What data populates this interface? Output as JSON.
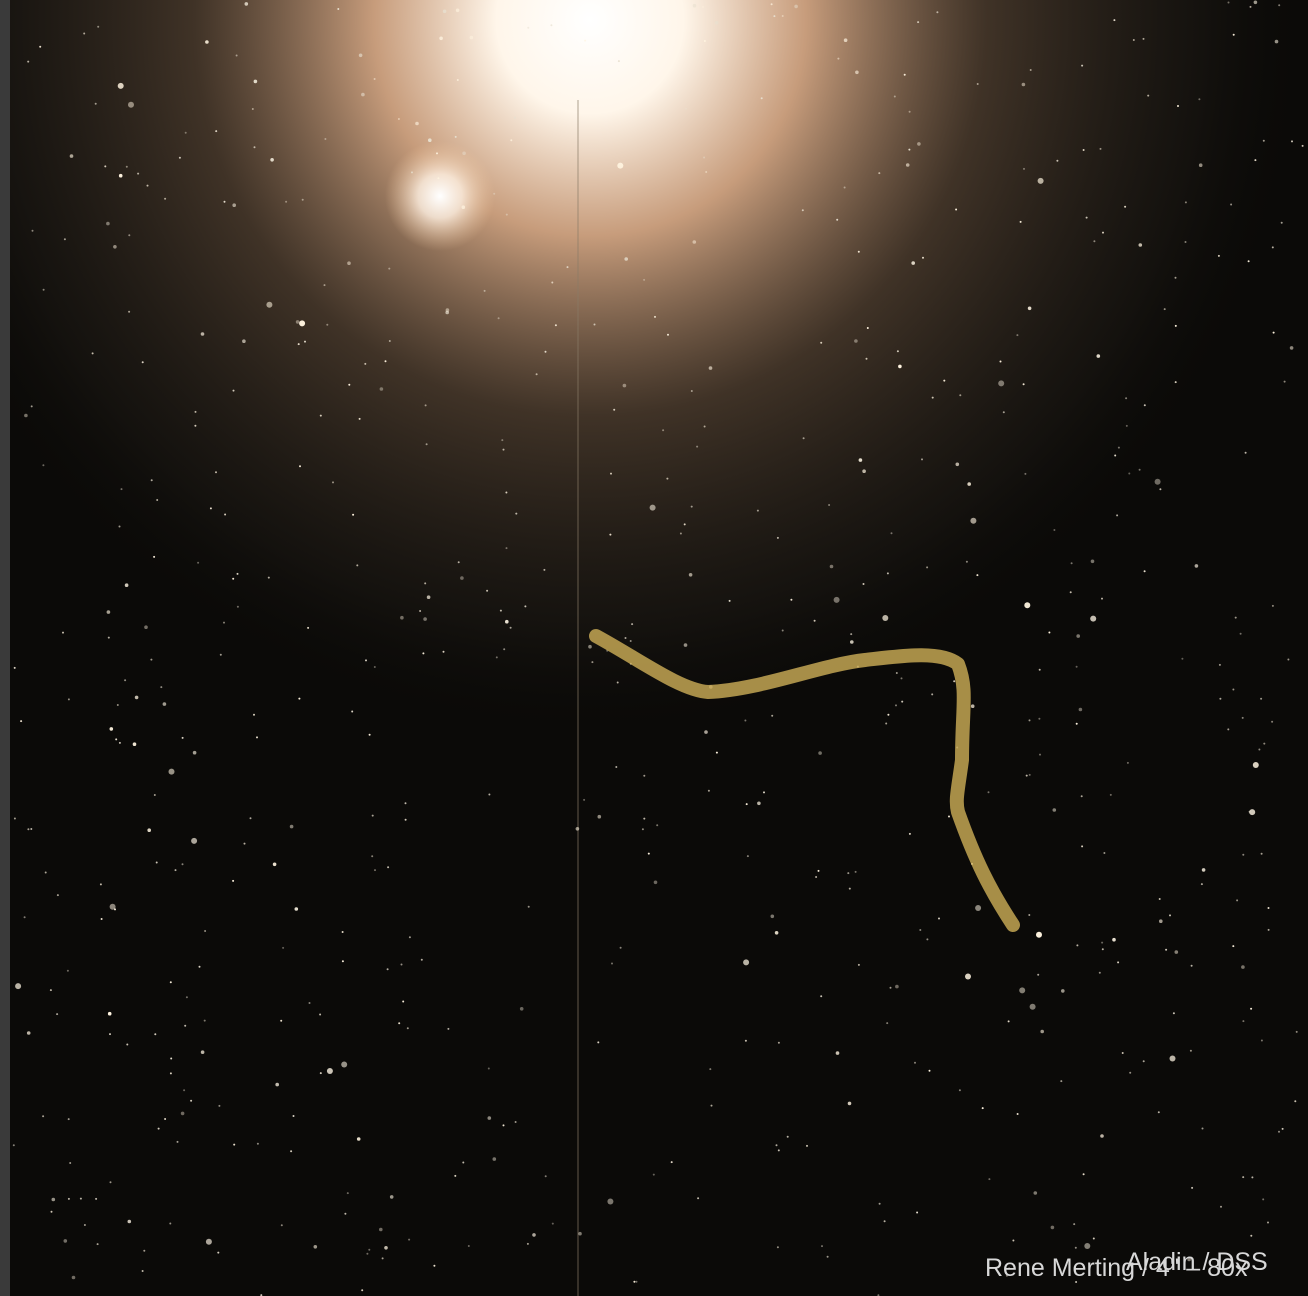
{
  "credits": [
    "Rene Merting / 4'' – 80x",
    "Aladin / DSS"
  ]
}
